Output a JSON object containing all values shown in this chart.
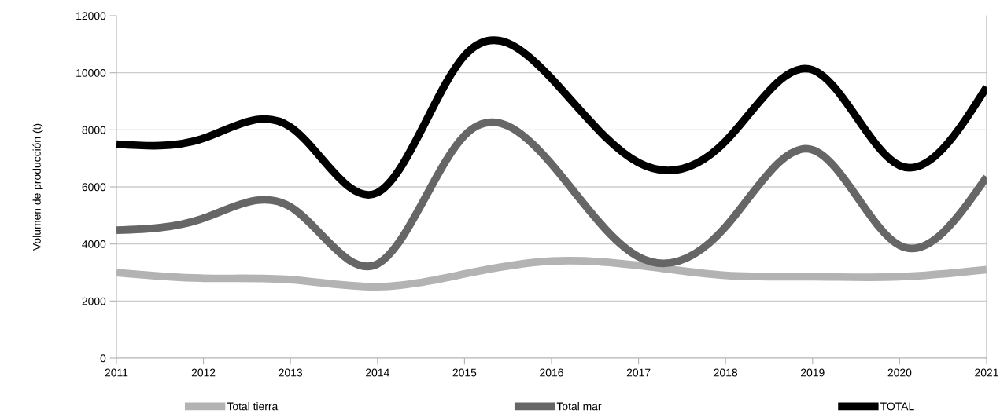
{
  "chart_data": {
    "type": "line",
    "ylabel": "Volumen de producción (t)",
    "x": [
      2011,
      2012,
      2013,
      2014,
      2015,
      2016,
      2017,
      2018,
      2019,
      2020,
      2021
    ],
    "series": [
      {
        "name": "Total tierra",
        "color": "#b3b3b3",
        "values": [
          3000,
          2800,
          2750,
          2500,
          2950,
          3400,
          3250,
          2900,
          2850,
          2850,
          3100
        ]
      },
      {
        "name": "Total mar",
        "color": "#666666",
        "values": [
          4480,
          4900,
          5300,
          3300,
          7800,
          6800,
          3550,
          4600,
          7300,
          3950,
          6350
        ]
      },
      {
        "name": "TOTAL",
        "color": "#000000",
        "values": [
          7500,
          7700,
          8100,
          5800,
          10600,
          9800,
          6850,
          7600,
          10100,
          6750,
          9500
        ]
      }
    ],
    "xlim": [
      2011,
      2021
    ],
    "xticks": [
      2011,
      2012,
      2013,
      2014,
      2015,
      2016,
      2017,
      2018,
      2019,
      2020,
      2021
    ],
    "ylim": [
      0,
      12000
    ],
    "yticks": [
      0,
      2000,
      4000,
      6000,
      8000,
      10000,
      12000
    ],
    "grid": "y",
    "legend": "bottom",
    "marker": "none",
    "line_style": "solid"
  }
}
